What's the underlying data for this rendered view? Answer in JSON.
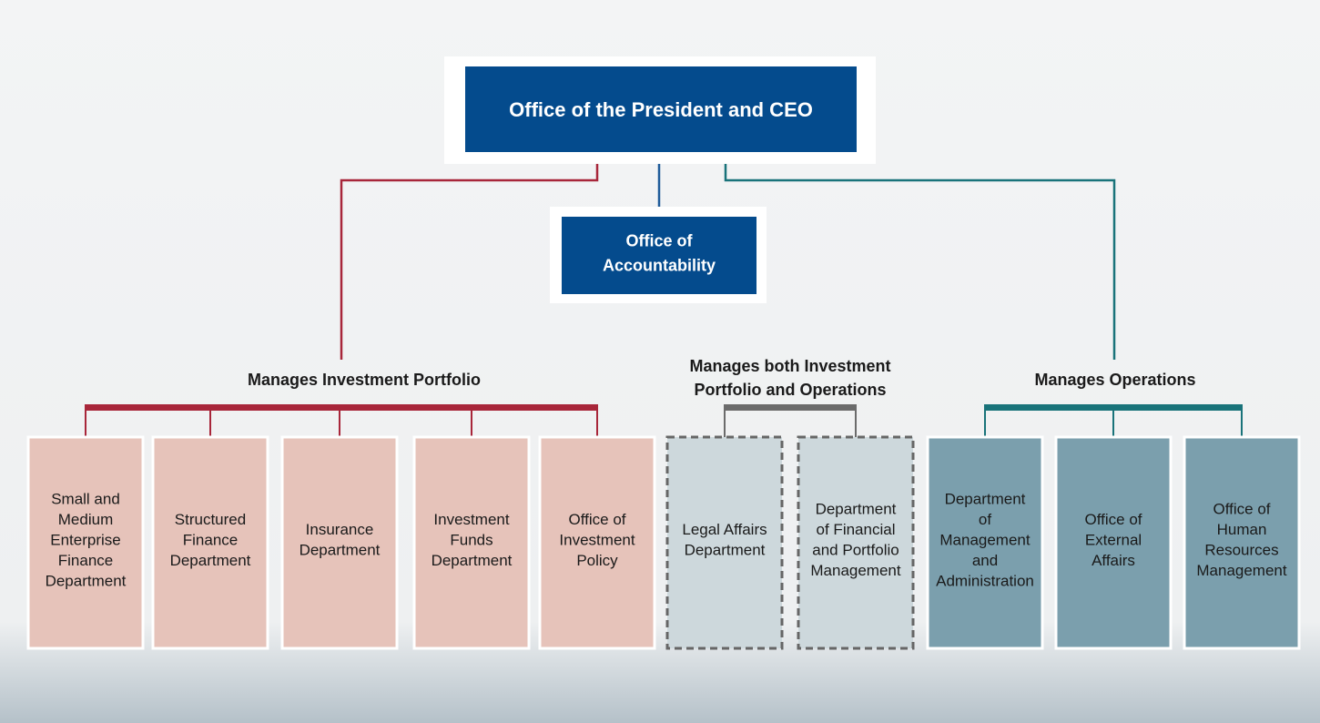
{
  "top": {
    "lines": [
      "Office of the President and CEO"
    ]
  },
  "accountability": {
    "lines": [
      "Office of",
      "Accountability"
    ]
  },
  "groups": [
    {
      "label": [
        "Manages Investment Portfolio"
      ],
      "departments": [
        {
          "lines": [
            "Small and",
            "Medium",
            "Enterprise",
            "Finance",
            "Department"
          ]
        },
        {
          "lines": [
            "Structured",
            "Finance",
            "Department"
          ]
        },
        {
          "lines": [
            "Insurance",
            "Department"
          ]
        },
        {
          "lines": [
            "Investment",
            "Funds",
            "Department"
          ]
        },
        {
          "lines": [
            "Office of",
            "Investment",
            "Policy"
          ]
        }
      ]
    },
    {
      "label": [
        "Manages both Investment",
        "Portfolio and Operations"
      ],
      "departments": [
        {
          "lines": [
            "Legal Affairs",
            "Department"
          ]
        },
        {
          "lines": [
            "Department",
            "of Financial",
            "and Portfolio",
            "Management"
          ]
        }
      ]
    },
    {
      "label": [
        "Manages Operations"
      ],
      "departments": [
        {
          "lines": [
            "Department",
            "of",
            "Management",
            "and",
            "Administration"
          ]
        },
        {
          "lines": [
            "Office of",
            "External",
            "Affairs"
          ]
        },
        {
          "lines": [
            "Office of",
            "Human",
            "Resources",
            "Management"
          ]
        }
      ]
    }
  ]
}
